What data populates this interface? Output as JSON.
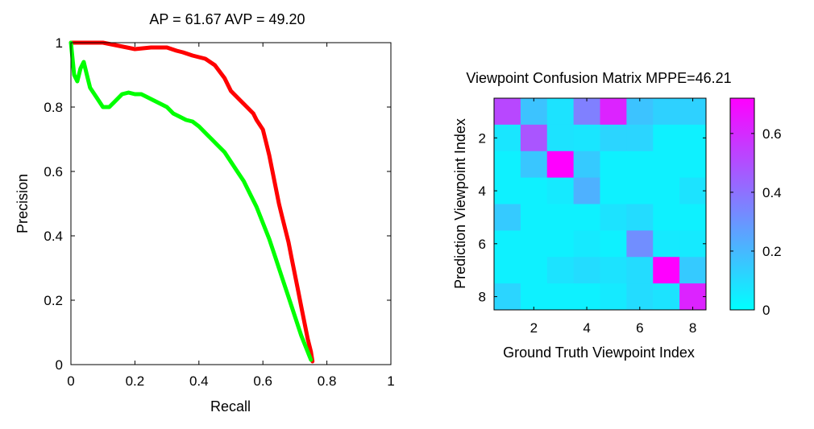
{
  "chart_data": [
    {
      "type": "line",
      "title": "AP = 61.67 AVP = 49.20",
      "xlabel": "Recall",
      "ylabel": "Precision",
      "xlim": [
        0,
        1
      ],
      "ylim": [
        0,
        1
      ],
      "xticks": [
        0,
        0.2,
        0.4,
        0.6,
        0.8,
        1
      ],
      "yticks": [
        0,
        0.2,
        0.4,
        0.6,
        0.8,
        1
      ],
      "xtick_labels": [
        "0",
        "0.2",
        "0.4",
        "0.6",
        "0.8",
        "1"
      ],
      "ytick_labels": [
        "0",
        "0.2",
        "0.4",
        "0.6",
        "0.8",
        "1"
      ],
      "grid": false,
      "legend": "none",
      "series": [
        {
          "color": "#ff0000",
          "x": [
            0.0,
            0.02,
            0.05,
            0.1,
            0.15,
            0.2,
            0.25,
            0.3,
            0.33,
            0.35,
            0.38,
            0.4,
            0.42,
            0.45,
            0.48,
            0.5,
            0.53,
            0.55,
            0.57,
            0.58,
            0.6,
            0.61,
            0.62,
            0.63,
            0.64,
            0.65,
            0.66,
            0.67,
            0.68,
            0.69,
            0.7,
            0.71,
            0.72,
            0.73,
            0.74,
            0.75,
            0.755
          ],
          "y": [
            1.0,
            1.0,
            1.0,
            1.0,
            0.99,
            0.98,
            0.985,
            0.985,
            0.975,
            0.97,
            0.96,
            0.955,
            0.95,
            0.93,
            0.89,
            0.85,
            0.82,
            0.8,
            0.78,
            0.76,
            0.73,
            0.69,
            0.65,
            0.6,
            0.55,
            0.5,
            0.46,
            0.42,
            0.38,
            0.33,
            0.28,
            0.23,
            0.18,
            0.13,
            0.08,
            0.04,
            0.01
          ]
        },
        {
          "color": "#00ff00",
          "x": [
            0.0,
            0.005,
            0.01,
            0.02,
            0.03,
            0.04,
            0.05,
            0.06,
            0.08,
            0.1,
            0.12,
            0.14,
            0.16,
            0.18,
            0.2,
            0.22,
            0.24,
            0.26,
            0.28,
            0.3,
            0.32,
            0.34,
            0.36,
            0.38,
            0.4,
            0.42,
            0.44,
            0.46,
            0.48,
            0.5,
            0.52,
            0.54,
            0.56,
            0.58,
            0.6,
            0.62,
            0.64,
            0.66,
            0.68,
            0.7,
            0.72,
            0.74,
            0.75
          ],
          "y": [
            1.0,
            0.95,
            0.9,
            0.88,
            0.92,
            0.94,
            0.9,
            0.86,
            0.83,
            0.8,
            0.8,
            0.82,
            0.84,
            0.845,
            0.84,
            0.84,
            0.83,
            0.82,
            0.81,
            0.8,
            0.78,
            0.77,
            0.76,
            0.755,
            0.74,
            0.72,
            0.7,
            0.68,
            0.66,
            0.63,
            0.6,
            0.57,
            0.53,
            0.49,
            0.44,
            0.39,
            0.33,
            0.27,
            0.21,
            0.15,
            0.09,
            0.04,
            0.015
          ]
        }
      ]
    },
    {
      "type": "heatmap",
      "title": "Viewpoint Confusion Matrix MPPE=46.21",
      "xlabel": "Ground Truth Viewpoint Index",
      "ylabel": "Prediction Viewpoint Index",
      "xticks": [
        2,
        4,
        6,
        8
      ],
      "yticks": [
        2,
        4,
        6,
        8
      ],
      "xtick_labels": [
        "2",
        "4",
        "6",
        "8"
      ],
      "ytick_labels": [
        "2",
        "4",
        "6",
        "8"
      ],
      "colormap": "cool",
      "clim": [
        0,
        0.72
      ],
      "colorbar_ticks": [
        0,
        0.2,
        0.4,
        0.6
      ],
      "colorbar_tick_labels": [
        "0",
        "0.2",
        "0.4",
        "0.6"
      ],
      "matrix": [
        [
          0.52,
          0.17,
          0.08,
          0.36,
          0.62,
          0.17,
          0.13,
          0.13
        ],
        [
          0.07,
          0.48,
          0.08,
          0.07,
          0.12,
          0.12,
          0.04,
          0.04
        ],
        [
          0.04,
          0.16,
          0.72,
          0.15,
          0.04,
          0.04,
          0.04,
          0.04
        ],
        [
          0.04,
          0.04,
          0.06,
          0.22,
          0.04,
          0.04,
          0.04,
          0.08
        ],
        [
          0.15,
          0.04,
          0.04,
          0.04,
          0.08,
          0.1,
          0.04,
          0.04
        ],
        [
          0.04,
          0.04,
          0.04,
          0.06,
          0.04,
          0.32,
          0.06,
          0.06
        ],
        [
          0.04,
          0.04,
          0.08,
          0.1,
          0.08,
          0.1,
          0.72,
          0.15
        ],
        [
          0.12,
          0.04,
          0.04,
          0.04,
          0.06,
          0.1,
          0.08,
          0.62
        ]
      ]
    }
  ]
}
